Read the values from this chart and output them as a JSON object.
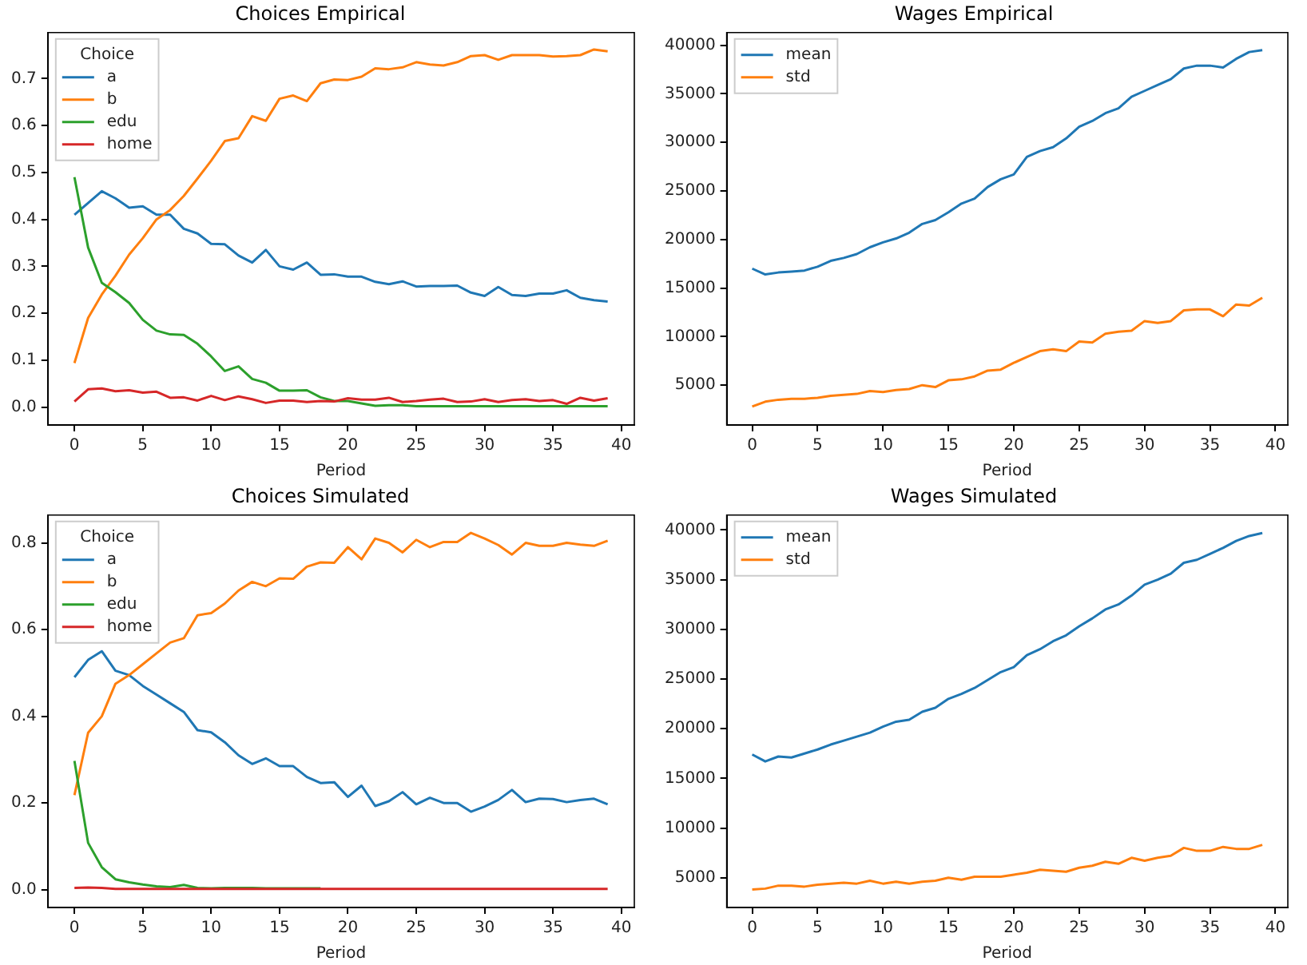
{
  "chart_data": [
    {
      "type": "line",
      "title": "Choices Empirical",
      "xlabel": "Period",
      "legend": "top left",
      "legend_title": "Choice",
      "grid": false,
      "marker": "none",
      "x": [
        0,
        1,
        2,
        3,
        4,
        5,
        6,
        7,
        8,
        9,
        10,
        11,
        12,
        13,
        14,
        15,
        16,
        17,
        18,
        19,
        20,
        21,
        22,
        23,
        24,
        25,
        26,
        27,
        28,
        29,
        30,
        31,
        32,
        33,
        34,
        35,
        36,
        37,
        38,
        39
      ],
      "xlim": [
        -1.95,
        40.95
      ],
      "xticks": [
        0,
        5,
        10,
        15,
        20,
        25,
        30,
        35,
        40
      ],
      "ylim": [
        -0.038,
        0.798
      ],
      "yticks": [
        {
          "value": 0,
          "label": "0.0"
        },
        {
          "value": 0.1,
          "label": "0.1"
        },
        {
          "value": 0.2,
          "label": "0.2"
        },
        {
          "value": 0.3,
          "label": "0.3"
        },
        {
          "value": 0.4,
          "label": "0.4"
        },
        {
          "value": 0.5,
          "label": "0.5"
        },
        {
          "value": 0.6,
          "label": "0.6"
        },
        {
          "value": 0.7,
          "label": "0.7"
        }
      ],
      "series": [
        {
          "name": "a",
          "color": "#1f77b4",
          "values": [
            0.41,
            0.435,
            0.46,
            0.445,
            0.425,
            0.428,
            0.41,
            0.41,
            0.38,
            0.37,
            0.348,
            0.347,
            0.323,
            0.308,
            0.335,
            0.3,
            0.293,
            0.308,
            0.282,
            0.283,
            0.278,
            0.278,
            0.267,
            0.262,
            0.268,
            0.257,
            0.258,
            0.258,
            0.259,
            0.244,
            0.237,
            0.256,
            0.239,
            0.237,
            0.242,
            0.242,
            0.249,
            0.233,
            0.228,
            0.225
          ]
        },
        {
          "name": "b",
          "color": "#ff7f0e",
          "values": [
            0.094,
            0.19,
            0.24,
            0.28,
            0.325,
            0.36,
            0.4,
            0.42,
            0.45,
            0.487,
            0.525,
            0.567,
            0.573,
            0.62,
            0.61,
            0.657,
            0.664,
            0.652,
            0.69,
            0.698,
            0.697,
            0.704,
            0.722,
            0.72,
            0.724,
            0.735,
            0.73,
            0.728,
            0.735,
            0.748,
            0.75,
            0.74,
            0.75,
            0.75,
            0.75,
            0.747,
            0.748,
            0.75,
            0.762,
            0.758
          ]
        },
        {
          "name": "edu",
          "color": "#2ca02c",
          "values": [
            0.49,
            0.34,
            0.265,
            0.245,
            0.222,
            0.186,
            0.163,
            0.155,
            0.154,
            0.135,
            0.108,
            0.077,
            0.087,
            0.06,
            0.052,
            0.035,
            0.035,
            0.036,
            0.021,
            0.013,
            0.013,
            0.008,
            0.003,
            0.004,
            0.004,
            0.002,
            0.002,
            0.002,
            0.002,
            0.002,
            0.002,
            0.002,
            0.002,
            0.002,
            0.002,
            0.002,
            0.002,
            0.002,
            0.002,
            0.002
          ]
        },
        {
          "name": "home",
          "color": "#d62728",
          "values": [
            0.012,
            0.038,
            0.04,
            0.034,
            0.036,
            0.031,
            0.033,
            0.02,
            0.021,
            0.014,
            0.024,
            0.015,
            0.023,
            0.017,
            0.009,
            0.014,
            0.014,
            0.011,
            0.013,
            0.012,
            0.019,
            0.016,
            0.016,
            0.02,
            0.011,
            0.013,
            0.016,
            0.018,
            0.011,
            0.012,
            0.017,
            0.011,
            0.015,
            0.017,
            0.013,
            0.015,
            0.007,
            0.02,
            0.014,
            0.019
          ]
        }
      ]
    },
    {
      "type": "line",
      "title": "Wages Empirical",
      "xlabel": "Period",
      "legend": "top left",
      "grid": false,
      "marker": "none",
      "x": [
        0,
        1,
        2,
        3,
        4,
        5,
        6,
        7,
        8,
        9,
        10,
        11,
        12,
        13,
        14,
        15,
        16,
        17,
        18,
        19,
        20,
        21,
        22,
        23,
        24,
        25,
        26,
        27,
        28,
        29,
        30,
        31,
        32,
        33,
        34,
        35,
        36,
        37,
        38,
        39
      ],
      "xlim": [
        -1.95,
        40.95
      ],
      "xticks": [
        0,
        5,
        10,
        15,
        20,
        25,
        30,
        35,
        40
      ],
      "ylim": [
        900,
        41300
      ],
      "yticks": [
        5000,
        10000,
        15000,
        20000,
        25000,
        30000,
        35000,
        40000
      ],
      "series": [
        {
          "name": "mean",
          "color": "#1f77b4",
          "values": [
            17000,
            16400,
            16600,
            16700,
            16800,
            17200,
            17800,
            18100,
            18500,
            19200,
            19700,
            20100,
            20700,
            21600,
            22000,
            22800,
            23700,
            24200,
            25400,
            26200,
            26700,
            28500,
            29100,
            29500,
            30400,
            31600,
            32200,
            33000,
            33500,
            34700,
            35300,
            35900,
            36500,
            37600,
            37900,
            37900,
            37700,
            38600,
            39300,
            39500
          ]
        },
        {
          "name": "std",
          "color": "#ff7f0e",
          "values": [
            2800,
            3300,
            3500,
            3600,
            3600,
            3700,
            3900,
            4000,
            4100,
            4400,
            4300,
            4500,
            4600,
            5000,
            4800,
            5500,
            5600,
            5900,
            6500,
            6600,
            7300,
            7900,
            8500,
            8700,
            8500,
            9500,
            9400,
            10300,
            10500,
            10600,
            11600,
            11400,
            11600,
            12700,
            12800,
            12800,
            12100,
            13300,
            13200,
            14000
          ]
        }
      ]
    },
    {
      "type": "line",
      "title": "Choices Simulated",
      "xlabel": "Period",
      "legend": "top left",
      "legend_title": "Choice",
      "grid": false,
      "marker": "none",
      "x": [
        0,
        1,
        2,
        3,
        4,
        5,
        6,
        7,
        8,
        9,
        10,
        11,
        12,
        13,
        14,
        15,
        16,
        17,
        18,
        19,
        20,
        21,
        22,
        23,
        24,
        25,
        26,
        27,
        28,
        29,
        30,
        31,
        32,
        33,
        34,
        35,
        36,
        37,
        38,
        39
      ],
      "xlim": [
        -1.95,
        40.95
      ],
      "xticks": [
        0,
        5,
        10,
        15,
        20,
        25,
        30,
        35,
        40
      ],
      "ylim": [
        -0.041,
        0.864
      ],
      "yticks": [
        {
          "value": 0,
          "label": "0.0"
        },
        {
          "value": 0.2,
          "label": "0.2"
        },
        {
          "value": 0.4,
          "label": "0.4"
        },
        {
          "value": 0.6,
          "label": "0.6"
        },
        {
          "value": 0.8,
          "label": "0.8"
        }
      ],
      "series": [
        {
          "name": "a",
          "color": "#1f77b4",
          "values": [
            0.49,
            0.53,
            0.55,
            0.505,
            0.495,
            0.47,
            0.45,
            0.43,
            0.41,
            0.368,
            0.363,
            0.34,
            0.31,
            0.29,
            0.303,
            0.285,
            0.285,
            0.26,
            0.246,
            0.248,
            0.214,
            0.24,
            0.193,
            0.204,
            0.225,
            0.197,
            0.212,
            0.2,
            0.2,
            0.18,
            0.192,
            0.207,
            0.23,
            0.202,
            0.21,
            0.209,
            0.202,
            0.207,
            0.21,
            0.197
          ]
        },
        {
          "name": "b",
          "color": "#ff7f0e",
          "values": [
            0.218,
            0.362,
            0.4,
            0.475,
            0.495,
            0.52,
            0.545,
            0.57,
            0.58,
            0.633,
            0.638,
            0.66,
            0.69,
            0.71,
            0.7,
            0.718,
            0.717,
            0.745,
            0.755,
            0.754,
            0.79,
            0.762,
            0.81,
            0.8,
            0.778,
            0.807,
            0.79,
            0.802,
            0.802,
            0.823,
            0.81,
            0.795,
            0.773,
            0.8,
            0.793,
            0.793,
            0.8,
            0.796,
            0.793,
            0.805
          ]
        },
        {
          "name": "edu",
          "color": "#2ca02c",
          "values": [
            0.297,
            0.108,
            0.052,
            0.024,
            0.017,
            0.012,
            0.008,
            0.006,
            0.011,
            0.004,
            0.003,
            0.004,
            0.004,
            0.004,
            0.003,
            0.003,
            0.003,
            0.003,
            0.003,
            null,
            null,
            null,
            null,
            null,
            null,
            null,
            null,
            null,
            null,
            null,
            null,
            null,
            null,
            null,
            null,
            null,
            null,
            null,
            null,
            null
          ]
        },
        {
          "name": "home",
          "color": "#d62728",
          "values": [
            0.004,
            0.005,
            0.004,
            0.002,
            0.002,
            0.002,
            0.002,
            0.002,
            0.002,
            0.002,
            0.002,
            0.002,
            0.002,
            0.002,
            0.002,
            0.002,
            0.002,
            0.002,
            0.002,
            0.002,
            0.002,
            0.002,
            0.002,
            0.002,
            0.002,
            0.002,
            0.002,
            0.002,
            0.002,
            0.002,
            0.002,
            0.002,
            0.002,
            0.002,
            0.002,
            0.002,
            0.002,
            0.002,
            0.002,
            0.002
          ]
        }
      ]
    },
    {
      "type": "line",
      "title": "Wages Simulated",
      "xlabel": "Period",
      "legend": "top left",
      "grid": false,
      "marker": "none",
      "x": [
        0,
        1,
        2,
        3,
        4,
        5,
        6,
        7,
        8,
        9,
        10,
        11,
        12,
        13,
        14,
        15,
        16,
        17,
        18,
        19,
        20,
        21,
        22,
        23,
        24,
        25,
        26,
        27,
        28,
        29,
        30,
        31,
        32,
        33,
        34,
        35,
        36,
        37,
        38,
        39
      ],
      "xlim": [
        -1.95,
        40.95
      ],
      "xticks": [
        0,
        5,
        10,
        15,
        20,
        25,
        30,
        35,
        40
      ],
      "ylim": [
        2000,
        41500
      ],
      "yticks": [
        5000,
        10000,
        15000,
        20000,
        25000,
        30000,
        35000,
        40000
      ],
      "series": [
        {
          "name": "mean",
          "color": "#1f77b4",
          "values": [
            17400,
            16700,
            17200,
            17100,
            17500,
            17900,
            18400,
            18800,
            19200,
            19600,
            20200,
            20700,
            20900,
            21700,
            22100,
            23000,
            23500,
            24100,
            24900,
            25700,
            26200,
            27400,
            28000,
            28800,
            29400,
            30300,
            31100,
            32000,
            32500,
            33400,
            34500,
            35000,
            35600,
            36700,
            37000,
            37600,
            38200,
            38900,
            39400,
            39700
          ]
        },
        {
          "name": "std",
          "color": "#ff7f0e",
          "values": [
            3800,
            3900,
            4200,
            4200,
            4100,
            4300,
            4400,
            4500,
            4400,
            4700,
            4400,
            4600,
            4400,
            4600,
            4700,
            5000,
            4800,
            5100,
            5100,
            5100,
            5300,
            5500,
            5800,
            5700,
            5600,
            6000,
            6200,
            6600,
            6400,
            7000,
            6700,
            7000,
            7200,
            8000,
            7700,
            7700,
            8100,
            7900,
            7900,
            8300
          ]
        }
      ]
    }
  ]
}
